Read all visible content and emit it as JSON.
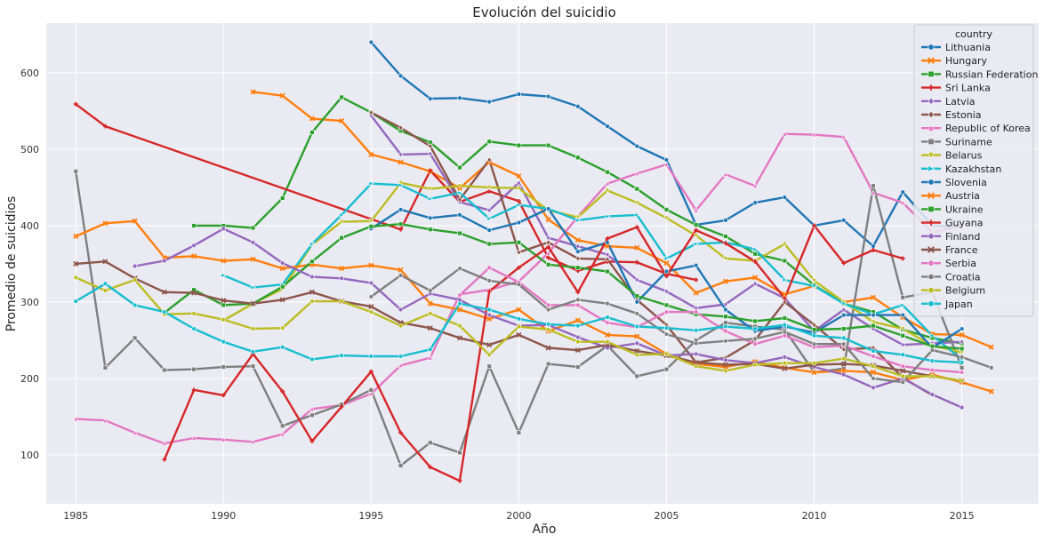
{
  "chart_data": {
    "type": "line",
    "title": "Evolución del suicidio",
    "xlabel": "Año",
    "ylabel": "Promedio de suicidios",
    "xlim": [
      1984,
      2017.6
    ],
    "ylim": [
      36,
      665
    ],
    "xticks": [
      1985,
      1990,
      1995,
      2000,
      2005,
      2010,
      2015
    ],
    "yticks": [
      100,
      200,
      300,
      400,
      500,
      600
    ],
    "grid": true,
    "legend": {
      "title": "country",
      "position": "top-right"
    },
    "series": [
      {
        "name": "Lithuania",
        "color": "#1f77b4",
        "marker": "circle",
        "x": [
          1995,
          1996,
          1997,
          1998,
          1999,
          2000,
          2001,
          2002,
          2003,
          2004,
          2005,
          2006,
          2007,
          2008,
          2009,
          2010,
          2011,
          2012,
          2013,
          2014,
          2015
        ],
        "y": [
          640,
          596,
          566,
          567,
          562,
          572,
          569,
          556,
          530,
          504,
          486,
          401,
          407,
          430,
          437,
          400,
          407,
          373,
          444,
          400,
          398
        ]
      },
      {
        "name": "Hungary",
        "color": "#ff7f0e",
        "marker": "x",
        "x": [
          1991,
          1992,
          1993,
          1994,
          1995,
          1996,
          1997,
          1998,
          1999,
          2000,
          2001,
          2002,
          2003,
          2004,
          2005,
          2006,
          2007,
          2008,
          2009,
          2010,
          2011,
          2012,
          2013,
          2014,
          2015,
          2016
        ],
        "y": [
          575,
          570,
          540,
          537,
          493,
          483,
          471,
          449,
          483,
          465,
          408,
          381,
          373,
          371,
          351,
          312,
          327,
          332,
          310,
          321,
          300,
          306,
          280,
          258,
          257,
          241
        ]
      },
      {
        "name": "Russian Federation",
        "color": "#2ca02c",
        "marker": "square",
        "x": [
          1989,
          1990,
          1991,
          1992,
          1993,
          1994,
          1995,
          1996,
          1997,
          1998,
          1999,
          2000,
          2001,
          2002,
          2003,
          2004,
          2005,
          2006,
          2007,
          2008,
          2009,
          2010,
          2011,
          2012,
          2013,
          2014,
          2015
        ],
        "y": [
          400,
          400,
          397,
          436,
          522,
          568,
          548,
          524,
          509,
          476,
          510,
          505,
          505,
          489,
          470,
          448,
          421,
          401,
          386,
          363,
          354,
          322,
          298,
          287,
          264,
          253,
          246
        ]
      },
      {
        "name": "Sri Lanka",
        "color": "#d62728",
        "marker": "plus",
        "x": [
          1985,
          1986,
          1996,
          1997,
          1998,
          1999,
          2000,
          2001,
          2002,
          2003,
          2004,
          2005,
          2006
        ],
        "y": [
          559,
          530,
          395,
          472,
          431,
          445,
          432,
          358,
          341,
          353,
          352,
          337,
          329
        ]
      },
      {
        "name": "Latvia",
        "color": "#9467bd",
        "marker": "diamond",
        "x": [
          1995,
          1996,
          1997,
          1998,
          1999,
          2000,
          2001,
          2002,
          2003,
          2004,
          2005,
          2006,
          2007,
          2008,
          2009,
          2010,
          2011,
          2012,
          2013,
          2014,
          2015
        ],
        "y": [
          544,
          493,
          494,
          431,
          420,
          456,
          384,
          373,
          362,
          329,
          314,
          292,
          297,
          324,
          305,
          262,
          290,
          265,
          244,
          246,
          248
        ]
      },
      {
        "name": "Estonia",
        "color": "#8c564b",
        "marker": "diamond",
        "x": [
          1995,
          1996,
          1997,
          1998,
          1999,
          2000,
          2001,
          2002,
          2003,
          2004,
          2005,
          2006,
          2007,
          2008,
          2009,
          2010,
          2011,
          2012,
          2013,
          2014
        ],
        "y": [
          548,
          528,
          504,
          434,
          486,
          365,
          378,
          357,
          356,
          303,
          270,
          221,
          227,
          250,
          300,
          270,
          238,
          240,
          201,
          178
        ]
      },
      {
        "name": "Republic of Korea",
        "color": "#e377c2",
        "marker": "triangle",
        "x": [
          1985,
          1986,
          1987,
          1988,
          1989,
          1990,
          1991,
          1992,
          1993,
          1994,
          1995,
          1996,
          1997,
          1998,
          1999,
          2000,
          2001,
          2002,
          2003,
          2004,
          2005,
          2006,
          2007,
          2008,
          2009,
          2010,
          2011,
          2012,
          2013,
          2014,
          2015
        ],
        "y": [
          147,
          145,
          129,
          115,
          122,
          120,
          117,
          127,
          160,
          165,
          180,
          217,
          227,
          310,
          316,
          327,
          364,
          412,
          455,
          468,
          480,
          420,
          467,
          452,
          520,
          519,
          516,
          443,
          430,
          391,
          400
        ]
      },
      {
        "name": "Suriname",
        "color": "#7f7f7f",
        "marker": "square",
        "x": [
          1985,
          1986,
          1987,
          1988,
          1989,
          1990,
          1991,
          1992,
          1993,
          1994,
          1995,
          1996,
          1997,
          1998,
          1999,
          2000,
          2001,
          2002,
          2003,
          2004,
          2005,
          2006,
          2007,
          2008,
          2009,
          2010,
          2011,
          2012,
          2013,
          2014,
          2015
        ],
        "y": [
          471,
          214,
          253,
          211,
          212,
          215,
          216,
          138,
          152,
          166,
          185,
          86,
          116,
          103,
          216,
          129,
          219,
          215,
          243,
          203,
          212,
          250,
          273,
          268,
          264,
          208,
          213,
          452,
          306,
          313,
          214
        ]
      },
      {
        "name": "Belarus",
        "color": "#bcbd22",
        "marker": "triangle-down",
        "x": [
          1990,
          1991,
          1992,
          1993,
          1994,
          1995,
          1996,
          1997,
          1998,
          1999,
          2000,
          2001,
          2002,
          2003,
          2004,
          2005,
          2006,
          2007,
          2008,
          2009,
          2010,
          2011,
          2012,
          2013,
          2014,
          2015
        ],
        "y": [
          276,
          298,
          317,
          375,
          405,
          406,
          456,
          448,
          452,
          450,
          449,
          420,
          411,
          446,
          430,
          410,
          387,
          357,
          354,
          376,
          328,
          300,
          274,
          265,
          243,
          234
        ]
      },
      {
        "name": "Kazakhstan",
        "color": "#17becf",
        "marker": "triangle-right",
        "x": [
          1990,
          1991,
          1992,
          1993,
          1994,
          1995,
          1996,
          1997,
          1998,
          1999,
          2000,
          2001,
          2002,
          2003,
          2004,
          2005,
          2006,
          2007,
          2008,
          2009,
          2010,
          2011,
          2012,
          2013,
          2014,
          2015
        ],
        "y": [
          335,
          319,
          323,
          376,
          414,
          455,
          453,
          435,
          443,
          409,
          427,
          422,
          407,
          412,
          414,
          357,
          376,
          378,
          369,
          329,
          321,
          298,
          284,
          296,
          256,
          225
        ]
      },
      {
        "name": "Slovenia",
        "color": "#1f77b4",
        "marker": "circle",
        "x": [
          1995,
          1996,
          1997,
          1998,
          1999,
          2000,
          2001,
          2002,
          2003,
          2004,
          2005,
          2006,
          2007,
          2008,
          2009,
          2010,
          2011,
          2012,
          2013,
          2014,
          2015
        ],
        "y": [
          396,
          421,
          410,
          414,
          394,
          404,
          422,
          366,
          378,
          300,
          340,
          348,
          290,
          262,
          268,
          260,
          283,
          283,
          283,
          240,
          265
        ]
      },
      {
        "name": "Austria",
        "color": "#ff7f0e",
        "marker": "x",
        "x": [
          1985,
          1986,
          1987,
          1988,
          1989,
          1990,
          1991,
          1992,
          1993,
          1994,
          1995,
          1996,
          1997,
          1998,
          1999,
          2000,
          2001,
          2002,
          2003,
          2004,
          2005,
          2006,
          2007,
          2008,
          2009,
          2010,
          2011,
          2012,
          2013,
          2014,
          2015,
          2016
        ],
        "y": [
          386,
          403,
          406,
          358,
          360,
          354,
          356,
          344,
          349,
          344,
          348,
          342,
          298,
          290,
          278,
          290,
          262,
          276,
          257,
          255,
          232,
          219,
          215,
          222,
          214,
          208,
          210,
          208,
          198,
          205,
          195,
          183
        ]
      },
      {
        "name": "Ukraine",
        "color": "#2ca02c",
        "marker": "square",
        "x": [
          1988,
          1989,
          1990,
          1991,
          1992,
          1993,
          1994,
          1995,
          1996,
          1997,
          1998,
          1999,
          2000,
          2001,
          2002,
          2003,
          2004,
          2005,
          2006,
          2007,
          2008,
          2009,
          2010,
          2011,
          2012,
          2013,
          2014,
          2015
        ],
        "y": [
          286,
          316,
          296,
          298,
          320,
          353,
          384,
          399,
          402,
          395,
          390,
          376,
          378,
          349,
          345,
          340,
          308,
          296,
          284,
          281,
          275,
          279,
          264,
          265,
          269,
          256,
          242,
          239
        ]
      },
      {
        "name": "Guyana",
        "color": "#d62728",
        "marker": "plus",
        "x": [
          1988,
          1989,
          1990,
          1991,
          1992,
          1993,
          1994,
          1995,
          1996,
          1997,
          1998,
          1999,
          2000,
          2001,
          2002,
          2003,
          2004,
          2005,
          2006,
          2007,
          2008,
          2009,
          2010,
          2011,
          2012,
          2013
        ],
        "y": [
          94,
          185,
          178,
          232,
          183,
          118,
          163,
          209,
          129,
          84,
          66,
          314,
          345,
          372,
          313,
          383,
          398,
          334,
          394,
          377,
          353,
          305,
          400,
          351,
          368,
          357
        ]
      },
      {
        "name": "Finland",
        "color": "#9467bd",
        "marker": "circle",
        "x": [
          1987,
          1988,
          1989,
          1990,
          1991,
          1992,
          1993,
          1994,
          1995,
          1996,
          1997,
          1998,
          1999,
          2000,
          2001,
          2002,
          2003,
          2004,
          2005,
          2006,
          2007,
          2008,
          2009,
          2010,
          2011,
          2012,
          2013,
          2014,
          2015
        ],
        "y": [
          347,
          354,
          374,
          396,
          378,
          351,
          333,
          331,
          325,
          290,
          311,
          303,
          283,
          269,
          270,
          254,
          240,
          246,
          230,
          232,
          224,
          220,
          228,
          215,
          205,
          188,
          200,
          179,
          162
        ]
      },
      {
        "name": "France",
        "color": "#8c564b",
        "marker": "x",
        "x": [
          1985,
          1986,
          1987,
          1988,
          1989,
          1990,
          1991,
          1992,
          1993,
          1994,
          1995,
          1996,
          1997,
          1998,
          1999,
          2000,
          2001,
          2002,
          2003,
          2004,
          2005,
          2006,
          2007,
          2008,
          2009,
          2010,
          2011,
          2012,
          2013,
          2014,
          2015
        ],
        "y": [
          350,
          353,
          331,
          313,
          312,
          302,
          298,
          303,
          313,
          301,
          294,
          273,
          266,
          253,
          244,
          257,
          240,
          237,
          244,
          236,
          230,
          221,
          218,
          219,
          213,
          218,
          219,
          217,
          210,
          203,
          197
        ]
      },
      {
        "name": "Serbia",
        "color": "#e377c2",
        "marker": "circle",
        "x": [
          1998,
          1999,
          2000,
          2001,
          2002,
          2003,
          2004,
          2005,
          2006,
          2007,
          2008,
          2009,
          2010,
          2011,
          2012,
          2013,
          2014,
          2015
        ],
        "y": [
          309,
          345,
          326,
          296,
          296,
          273,
          267,
          287,
          287,
          262,
          245,
          256,
          241,
          243,
          229,
          216,
          211,
          208
        ]
      },
      {
        "name": "Croatia",
        "color": "#7f7f7f",
        "marker": "circle",
        "x": [
          1995,
          1996,
          1997,
          1998,
          1999,
          2000,
          2001,
          2002,
          2003,
          2004,
          2005,
          2006,
          2007,
          2008,
          2009,
          2010,
          2011,
          2012,
          2013,
          2014,
          2015,
          2016
        ],
        "y": [
          307,
          335,
          315,
          344,
          328,
          323,
          290,
          303,
          298,
          285,
          258,
          246,
          249,
          252,
          261,
          245,
          245,
          200,
          195,
          237,
          228,
          214
        ]
      },
      {
        "name": "Belgium",
        "color": "#bcbd22",
        "marker": "circle",
        "x": [
          1985,
          1986,
          1987,
          1988,
          1989,
          1990,
          1991,
          1992,
          1993,
          1994,
          1995,
          1996,
          1997,
          1998,
          1999,
          2000,
          2001,
          2002,
          2003,
          2004,
          2005,
          2006,
          2007,
          2008,
          2009,
          2010,
          2011,
          2012,
          2013,
          2014,
          2015
        ],
        "y": [
          332,
          315,
          329,
          284,
          285,
          277,
          265,
          266,
          301,
          301,
          287,
          269,
          285,
          269,
          231,
          268,
          264,
          248,
          248,
          231,
          232,
          216,
          210,
          218,
          220,
          220,
          226,
          216,
          203,
          203,
          197
        ]
      },
      {
        "name": "Japan",
        "color": "#17becf",
        "marker": "circle",
        "x": [
          1985,
          1986,
          1987,
          1988,
          1989,
          1990,
          1991,
          1992,
          1993,
          1994,
          1995,
          1996,
          1997,
          1998,
          1999,
          2000,
          2001,
          2002,
          2003,
          2004,
          2005,
          2006,
          2007,
          2008,
          2009,
          2010,
          2011,
          2012,
          2013,
          2014,
          2015
        ],
        "y": [
          301,
          324,
          296,
          287,
          265,
          248,
          235,
          241,
          225,
          230,
          229,
          229,
          238,
          298,
          290,
          278,
          271,
          269,
          280,
          268,
          266,
          263,
          268,
          265,
          270,
          256,
          253,
          236,
          231,
          223,
          221
        ]
      }
    ]
  }
}
